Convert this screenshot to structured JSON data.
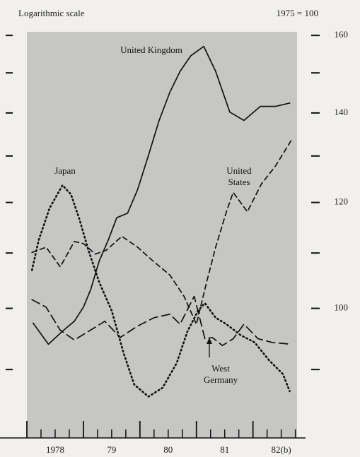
{
  "chart_data": {
    "type": "line",
    "title": "Logarithmic scale",
    "subtitle": "1975 = 100",
    "log_scale": true,
    "ylim": [
      80,
      161
    ],
    "yticks": [
      100,
      120,
      140,
      160
    ],
    "yminorticks": [
      90,
      110,
      130,
      150
    ],
    "xlim": [
      1978,
      1982.78
    ],
    "xticks": [
      {
        "value": 1978.5,
        "label": "1978"
      },
      {
        "value": 1979.5,
        "label": "79"
      },
      {
        "value": 1980.5,
        "label": "80"
      },
      {
        "value": 1981.5,
        "label": "81"
      },
      {
        "value": 1982.5,
        "label": "82(b)"
      }
    ],
    "xmajorticks": [
      1978,
      1979,
      1980,
      1981,
      1982
    ],
    "xminorticks": [
      1978.25,
      1978.5,
      1978.75,
      1979.25,
      1979.5,
      1979.75,
      1980.25,
      1980.5,
      1980.75,
      1981.25,
      1981.5,
      1981.75,
      1982.25,
      1982.5,
      1982.75
    ],
    "background": "#c6c6c4",
    "series": [
      {
        "name": "United Kingdom",
        "color": "#111111",
        "dash": "solid",
        "x": [
          1978.11,
          1978.38,
          1978.65,
          1978.84,
          1979.0,
          1979.13,
          1979.28,
          1979.44,
          1979.59,
          1979.78,
          1979.96,
          1980.15,
          1980.34,
          1980.53,
          1980.71,
          1980.9,
          1981.13,
          1981.34,
          1981.59,
          1981.84,
          1982.13,
          1982.4,
          1982.65
        ],
        "values": [
          97.5,
          94.0,
          96.3,
          97.8,
          100.2,
          103.3,
          108.5,
          112.5,
          116.9,
          117.8,
          122.7,
          130.1,
          138.2,
          145.1,
          150.4,
          154.5,
          157.0,
          150.4,
          140.2,
          138.2,
          141.6,
          141.6,
          142.4
        ]
      },
      {
        "name": "Japan",
        "color": "#111111",
        "dash": "dotted",
        "x": [
          1978.09,
          1978.21,
          1978.4,
          1978.63,
          1978.78,
          1978.93,
          1979.09,
          1979.28,
          1979.5,
          1979.71,
          1979.9,
          1980.15,
          1980.4,
          1980.65,
          1980.84,
          1981.03,
          1981.15,
          1981.34,
          1981.53,
          1981.78,
          1982.03,
          1982.28,
          1982.53,
          1982.65
        ],
        "values": [
          106.8,
          112.5,
          118.8,
          123.6,
          121.7,
          116.6,
          110.5,
          104.6,
          99.6,
          92.6,
          87.7,
          85.9,
          87.2,
          91.0,
          96.1,
          99.6,
          100.9,
          98.4,
          97.3,
          95.5,
          94.3,
          91.5,
          89.3,
          86.7
        ]
      },
      {
        "name": "United States",
        "color": "#111111",
        "dash": "dashed",
        "x": [
          1978.09,
          1978.34,
          1978.59,
          1978.84,
          1979.0,
          1979.21,
          1979.4,
          1979.68,
          1979.96,
          1980.21,
          1980.53,
          1980.78,
          1981.0,
          1981.18,
          1981.34,
          1981.53,
          1981.65,
          1981.9,
          1982.15,
          1982.4,
          1982.68
        ],
        "values": [
          110.1,
          111.1,
          107.4,
          112.2,
          111.8,
          109.8,
          110.5,
          113.2,
          111.1,
          108.7,
          105.9,
          102.1,
          97.3,
          104.6,
          111.1,
          118.1,
          122.1,
          118.1,
          123.9,
          127.8,
          133.6
        ]
      },
      {
        "name": "West Germany",
        "color": "#111111",
        "dash": "long-dashed",
        "x": [
          1978.09,
          1978.34,
          1978.59,
          1978.84,
          1979.09,
          1979.38,
          1979.65,
          1979.96,
          1980.25,
          1980.53,
          1980.71,
          1980.96,
          1981.15,
          1981.28,
          1981.46,
          1981.65,
          1981.84,
          1982.09,
          1982.34,
          1982.68
        ],
        "values": [
          101.5,
          100.2,
          96.3,
          94.7,
          96.1,
          97.8,
          95.1,
          97.0,
          98.4,
          99.0,
          97.3,
          102.1,
          94.9,
          95.1,
          93.8,
          94.9,
          97.3,
          94.9,
          94.3,
          94.0
        ]
      }
    ]
  }
}
